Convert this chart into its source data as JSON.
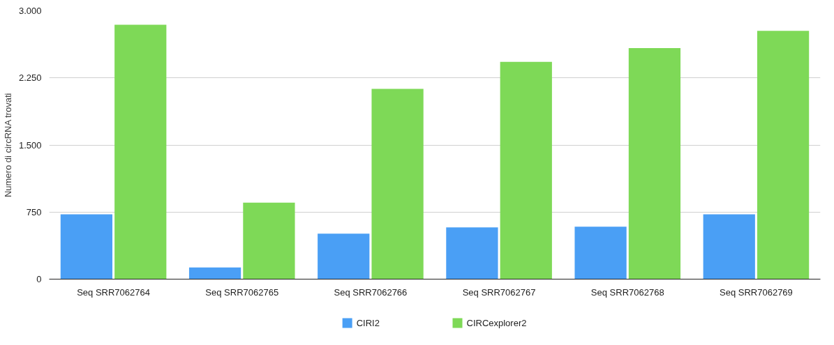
{
  "chart_data": {
    "type": "bar",
    "ylabel": "Numero di circRNA trovati",
    "categories": [
      "Seq SRR7062764",
      "Seq SRR7062765",
      "Seq SRR7062766",
      "Seq SRR7062767",
      "Seq SRR7062768",
      "Seq SRR7062769"
    ],
    "series": [
      {
        "name": "CIRI2",
        "color": "#4a9ff5",
        "values": [
          725,
          131,
          509,
          578,
          586,
          725
        ]
      },
      {
        "name": "CIRCexplorer2",
        "color": "#7ed957",
        "values": [
          2845,
          856,
          2128,
          2429,
          2583,
          2776
        ]
      }
    ],
    "ylim": [
      0,
      3000
    ],
    "yticks": [
      {
        "value": 0,
        "label": "0"
      },
      {
        "value": 750,
        "label": "750"
      },
      {
        "value": 1500,
        "label": "1.500"
      },
      {
        "value": 2250,
        "label": "2.250"
      },
      {
        "value": 3000,
        "label": "3.000"
      }
    ],
    "grid": "y",
    "legend": "bottom"
  }
}
